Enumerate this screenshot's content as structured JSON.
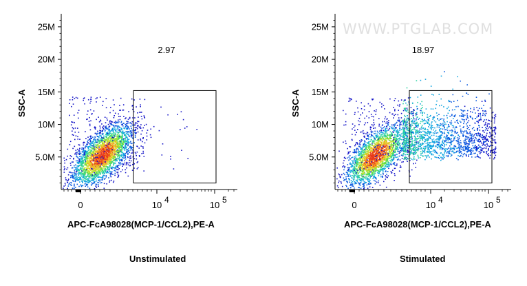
{
  "chart_data": [
    {
      "type": "scatter",
      "subtype": "flow-cytometry-density-plot",
      "title": "",
      "caption": "Unstimulated",
      "xlabel": "APC-FcA98028(MCP-1/CCL2),PE-A",
      "ylabel": "SSC-A",
      "x_ticks": [
        {
          "label": "0",
          "exp": ""
        },
        {
          "label": "10",
          "exp": "4"
        },
        {
          "label": "10",
          "exp": "5"
        }
      ],
      "y_ticks": [
        "5.0M",
        "10M",
        "15M",
        "20M",
        "25M"
      ],
      "ylim": [
        0,
        27
      ],
      "gate": {
        "label": "2.97",
        "percent": 2.97
      },
      "watermark": "",
      "grid": false
    },
    {
      "type": "scatter",
      "subtype": "flow-cytometry-density-plot",
      "title": "",
      "caption": "Stimulated",
      "xlabel": "APC-FcA98028(MCP-1/CCL2),PE-A",
      "ylabel": "SSC-A",
      "x_ticks": [
        {
          "label": "0",
          "exp": ""
        },
        {
          "label": "10",
          "exp": "4"
        },
        {
          "label": "10",
          "exp": "5"
        }
      ],
      "y_ticks": [
        "5.0M",
        "10M",
        "15M",
        "20M",
        "25M"
      ],
      "ylim": [
        0,
        27
      ],
      "gate": {
        "label": "18.97",
        "percent": 18.97
      },
      "watermark": "WWW.PTGLAB.COM",
      "grid": false
    }
  ]
}
